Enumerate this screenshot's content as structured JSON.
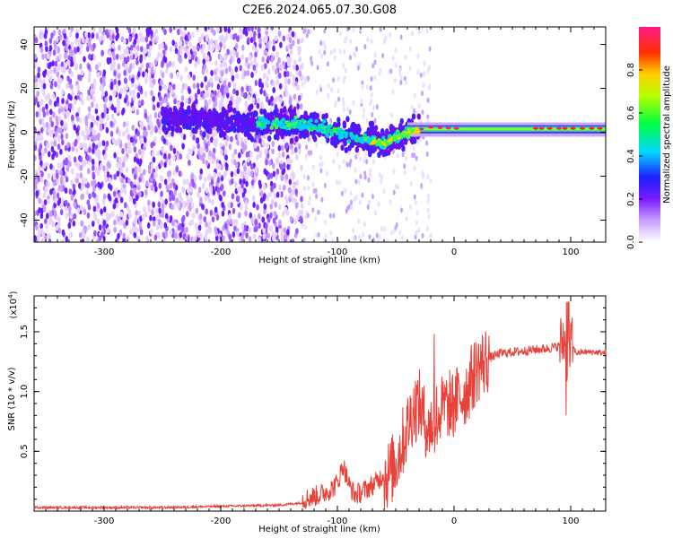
{
  "title": "C2E6.2024.065.07.30.G08",
  "chart_data": [
    {
      "type": "heatmap",
      "xlabel": "Height of straight line (km)",
      "ylabel": "Frequency (Hz)",
      "xlim": [
        -360,
        130
      ],
      "ylim": [
        -50,
        48
      ],
      "xticks": [
        -300,
        -200,
        -100,
        0,
        100
      ],
      "yticks": [
        -40,
        -20,
        0,
        20,
        40
      ],
      "colorbar": {
        "label": "Normalized spectral amplitude",
        "range": [
          0.0,
          1.0
        ],
        "ticks": [
          0.0,
          0.2,
          0.4,
          0.6,
          0.8
        ],
        "colormap": "rainbow-white-to-pink"
      },
      "ridge": {
        "x": [
          -250,
          -200,
          -150,
          -120,
          -100,
          -80,
          -60,
          -40,
          -20,
          0,
          50,
          100,
          130
        ],
        "frequency": [
          7,
          5,
          4,
          3,
          0,
          -3,
          -5,
          0,
          2,
          1.5,
          1.5,
          1.5,
          1.5
        ]
      }
    },
    {
      "type": "line",
      "xlabel": "Height of straight line (km)",
      "ylabel": "SNR (10 * v/v)",
      "y_scale_label": "(x10",
      "y_scale_exp": "4",
      "y_scale_close": ")",
      "xlim": [
        -360,
        130
      ],
      "ylim": [
        0,
        1.8
      ],
      "xticks": [
        -300,
        -200,
        -100,
        0,
        100
      ],
      "yticks": [
        0.5,
        1.0,
        1.5
      ],
      "ytick_labels": [
        "0.5",
        "1.0",
        "1.5"
      ],
      "color": "#e8413a",
      "series": [
        {
          "x": [
            -360,
            -300,
            -250,
            -200,
            -150,
            -130,
            -115,
            -105,
            -100,
            -95,
            -90,
            -85,
            -80,
            -75,
            -70,
            -65,
            -60,
            -55,
            -50,
            -45,
            -40,
            -35,
            -30,
            -25,
            -20,
            -15,
            -10,
            -5,
            0,
            5,
            10,
            15,
            20,
            30,
            40,
            60,
            80,
            90,
            95,
            98,
            100,
            105,
            110,
            120,
            130
          ],
          "y": [
            0.02,
            0.02,
            0.02,
            0.03,
            0.04,
            0.06,
            0.1,
            0.15,
            0.2,
            0.35,
            0.18,
            0.1,
            0.12,
            0.15,
            0.18,
            0.22,
            0.28,
            0.32,
            0.4,
            0.55,
            0.7,
            0.85,
            0.9,
            0.75,
            0.7,
            0.8,
            0.85,
            0.9,
            0.9,
            0.95,
            1.0,
            1.1,
            1.2,
            1.28,
            1.32,
            1.34,
            1.36,
            1.38,
            1.45,
            1.2,
            1.4,
            1.32,
            1.33,
            1.33,
            1.32
          ]
        }
      ]
    }
  ]
}
